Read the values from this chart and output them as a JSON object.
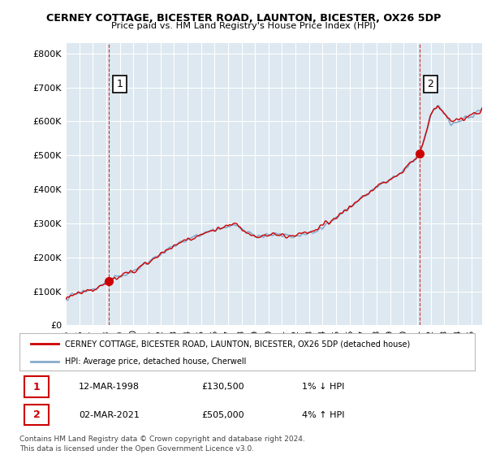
{
  "title": "CERNEY COTTAGE, BICESTER ROAD, LAUNTON, BICESTER, OX26 5DP",
  "subtitle": "Price paid vs. HM Land Registry's House Price Index (HPI)",
  "ylabel_ticks": [
    "£0",
    "£100K",
    "£200K",
    "£300K",
    "£400K",
    "£500K",
    "£600K",
    "£700K",
    "£800K"
  ],
  "ytick_values": [
    0,
    100000,
    200000,
    300000,
    400000,
    500000,
    600000,
    700000,
    800000
  ],
  "ylim": [
    0,
    830000
  ],
  "xlim_start": 1995.0,
  "xlim_end": 2025.8,
  "legend_line1": "CERNEY COTTAGE, BICESTER ROAD, LAUNTON, BICESTER, OX26 5DP (detached house)",
  "legend_line2": "HPI: Average price, detached house, Cherwell",
  "sale1_date": "12-MAR-1998",
  "sale1_price": "£130,500",
  "sale1_hpi": "1% ↓ HPI",
  "sale2_date": "02-MAR-2021",
  "sale2_price": "£505,000",
  "sale2_hpi": "4% ↑ HPI",
  "footer_line1": "Contains HM Land Registry data © Crown copyright and database right 2024.",
  "footer_line2": "This data is licensed under the Open Government Licence v3.0.",
  "sale1_x": 1998.19,
  "sale1_y": 130500,
  "sale2_x": 2021.17,
  "sale2_y": 505000,
  "line_color_red": "#cc0000",
  "line_color_blue": "#88aacc",
  "marker_color_red": "#cc0000",
  "bg_plot": "#dde8f0",
  "bg_outer": "#ffffff",
  "grid_color": "#ffffff",
  "label_box_color": "#cc0000",
  "annot_box_color": "#000000"
}
